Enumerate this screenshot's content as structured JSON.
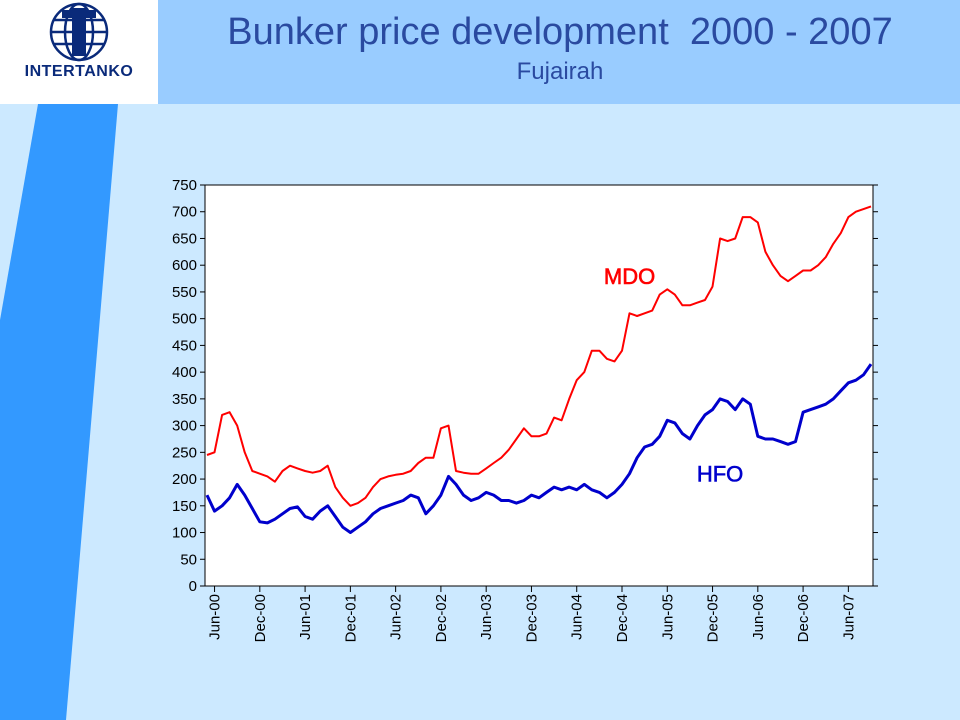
{
  "header": {
    "logo_text": "INTERTANKO",
    "title": "Bunker price development  2000 - 2007",
    "subtitle": "Fujairah"
  },
  "colors": {
    "header_bar": "#99ccff",
    "background": "#cce9ff",
    "stripe": "#3399ff",
    "title_text": "#2a4aa0",
    "mdo_line": "#ff0000",
    "hfo_line": "#0000cc"
  },
  "chart_data": {
    "type": "line",
    "title": "",
    "xlabel": "",
    "ylabel": "",
    "ylim": [
      0,
      750
    ],
    "y_ticks": [
      0,
      50,
      100,
      150,
      200,
      250,
      300,
      350,
      400,
      450,
      500,
      550,
      600,
      650,
      700,
      750
    ],
    "grid": false,
    "x_tick_labels": [
      "Jun-00",
      "Dec-00",
      "Jun-01",
      "Dec-01",
      "Jun-02",
      "Dec-02",
      "Jun-03",
      "Dec-03",
      "Jun-04",
      "Dec-04",
      "Jun-05",
      "Dec-05",
      "Jun-06",
      "Dec-06",
      "Jun-07"
    ],
    "x_months": [
      "May-00",
      "Jun-00",
      "Jul-00",
      "Aug-00",
      "Sep-00",
      "Oct-00",
      "Nov-00",
      "Dec-00",
      "Jan-01",
      "Feb-01",
      "Mar-01",
      "Apr-01",
      "May-01",
      "Jun-01",
      "Jul-01",
      "Aug-01",
      "Sep-01",
      "Oct-01",
      "Nov-01",
      "Dec-01",
      "Jan-02",
      "Feb-02",
      "Mar-02",
      "Apr-02",
      "May-02",
      "Jun-02",
      "Jul-02",
      "Aug-02",
      "Sep-02",
      "Oct-02",
      "Nov-02",
      "Dec-02",
      "Jan-03",
      "Feb-03",
      "Mar-03",
      "Apr-03",
      "May-03",
      "Jun-03",
      "Jul-03",
      "Aug-03",
      "Sep-03",
      "Oct-03",
      "Nov-03",
      "Dec-03",
      "Jan-04",
      "Feb-04",
      "Mar-04",
      "Apr-04",
      "May-04",
      "Jun-04",
      "Jul-04",
      "Aug-04",
      "Sep-04",
      "Oct-04",
      "Nov-04",
      "Dec-04",
      "Jan-05",
      "Feb-05",
      "Mar-05",
      "Apr-05",
      "May-05",
      "Jun-05",
      "Jul-05",
      "Aug-05",
      "Sep-05",
      "Oct-05",
      "Nov-05",
      "Dec-05",
      "Jan-06",
      "Feb-06",
      "Mar-06",
      "Apr-06",
      "May-06",
      "Jun-06",
      "Jul-06",
      "Aug-06",
      "Sep-06",
      "Oct-06",
      "Nov-06",
      "Dec-06",
      "Jan-07",
      "Feb-07",
      "Mar-07",
      "Apr-07",
      "May-07",
      "Jun-07",
      "Jul-07",
      "Aug-07",
      "Sep-07"
    ],
    "series": [
      {
        "name": "MDO",
        "color": "#ff0000",
        "values": [
          245,
          250,
          320,
          325,
          300,
          250,
          215,
          210,
          205,
          195,
          215,
          225,
          220,
          215,
          212,
          215,
          225,
          185,
          165,
          150,
          155,
          165,
          185,
          200,
          205,
          208,
          210,
          215,
          230,
          240,
          240,
          295,
          300,
          215,
          212,
          210,
          210,
          220,
          230,
          240,
          255,
          275,
          295,
          280,
          280,
          285,
          315,
          310,
          350,
          385,
          400,
          440,
          440,
          425,
          420,
          440,
          510,
          505,
          510,
          515,
          545,
          555,
          545,
          525,
          525,
          530,
          535,
          560,
          650,
          645,
          650,
          690,
          690,
          680,
          625,
          600,
          580,
          570,
          580,
          590,
          590,
          600,
          615,
          640,
          660,
          690,
          700,
          705,
          710
        ]
      },
      {
        "name": "HFO",
        "color": "#0000cc",
        "values": [
          170,
          140,
          150,
          165,
          190,
          170,
          145,
          120,
          118,
          125,
          135,
          145,
          148,
          130,
          125,
          140,
          150,
          130,
          110,
          100,
          110,
          120,
          135,
          145,
          150,
          155,
          160,
          170,
          165,
          135,
          150,
          170,
          205,
          190,
          170,
          160,
          165,
          175,
          170,
          160,
          160,
          155,
          160,
          170,
          165,
          175,
          185,
          180,
          185,
          180,
          190,
          180,
          175,
          165,
          175,
          190,
          210,
          240,
          260,
          265,
          280,
          310,
          305,
          285,
          275,
          300,
          320,
          330,
          350,
          345,
          330,
          350,
          340,
          280,
          275,
          275,
          270,
          265,
          270,
          325,
          330,
          335,
          340,
          350,
          365,
          380,
          385,
          395,
          415
        ]
      }
    ]
  }
}
